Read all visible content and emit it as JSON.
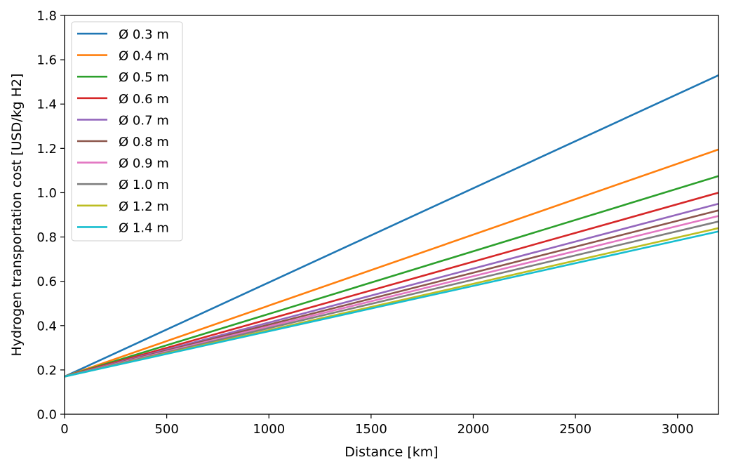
{
  "chart_data": {
    "type": "line",
    "title": "",
    "xlabel": "Distance [km]",
    "ylabel": "Hydrogen transportation cost [USD/kg H2]",
    "xlim": [
      0,
      3200
    ],
    "ylim": [
      0,
      1.8
    ],
    "xticks": [
      "0",
      "500",
      "1000",
      "1500",
      "2000",
      "2500",
      "3000"
    ],
    "yticks": [
      "0.0",
      "0.2",
      "0.4",
      "0.6",
      "0.8",
      "1.0",
      "1.2",
      "1.4",
      "1.6",
      "1.8"
    ],
    "grid": false,
    "legend_position": "top-left",
    "x": [
      0,
      3200
    ],
    "series": [
      {
        "name": "Ø 0.3 m",
        "color": "#1f77b4",
        "values": [
          0.17,
          1.53
        ]
      },
      {
        "name": "Ø 0.4 m",
        "color": "#ff7f0e",
        "values": [
          0.17,
          1.195
        ]
      },
      {
        "name": "Ø 0.5 m",
        "color": "#2ca02c",
        "values": [
          0.17,
          1.075
        ]
      },
      {
        "name": "Ø 0.6 m",
        "color": "#d62728",
        "values": [
          0.17,
          1.0
        ]
      },
      {
        "name": "Ø 0.7 m",
        "color": "#9467bd",
        "values": [
          0.17,
          0.95
        ]
      },
      {
        "name": "Ø 0.8 m",
        "color": "#8c564b",
        "values": [
          0.17,
          0.92
        ]
      },
      {
        "name": "Ø 0.9 m",
        "color": "#e377c2",
        "values": [
          0.17,
          0.895
        ]
      },
      {
        "name": "Ø 1.0 m",
        "color": "#7f7f7f",
        "values": [
          0.17,
          0.87
        ]
      },
      {
        "name": "Ø 1.2 m",
        "color": "#bcbd22",
        "values": [
          0.17,
          0.84
        ]
      },
      {
        "name": "Ø 1.4 m",
        "color": "#17becf",
        "values": [
          0.17,
          0.825
        ]
      }
    ]
  }
}
